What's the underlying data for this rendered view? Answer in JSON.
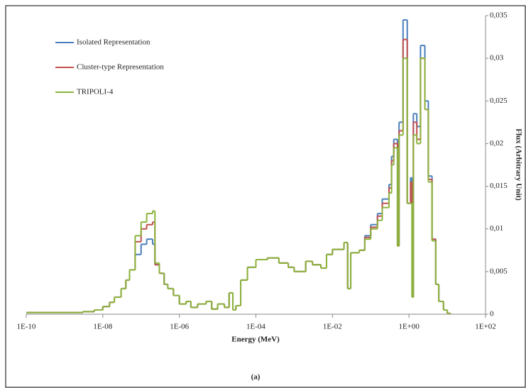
{
  "chart_data": {
    "type": "step",
    "x_label": "Energy (MeV)",
    "y_label": "Flux (Arbitrary Unit)",
    "caption": "(a)",
    "x_log": true,
    "grid": false,
    "legend": "top-left",
    "xlim": [
      1e-10,
      100
    ],
    "xticks": [
      {
        "value": 1e-10,
        "label": "1E-10"
      },
      {
        "value": 1e-08,
        "label": "1E-08"
      },
      {
        "value": 1e-06,
        "label": "1E-06"
      },
      {
        "value": 0.0001,
        "label": "1E-04"
      },
      {
        "value": 0.01,
        "label": "1E-02"
      },
      {
        "value": 1,
        "label": "1E+00"
      },
      {
        "value": 100,
        "label": "1E+02"
      }
    ],
    "ylim": [
      0,
      0.035
    ],
    "yticks": [
      0,
      {
        "value": 0.005,
        "label": "0,005"
      },
      {
        "value": 0.01,
        "label": "0,01"
      },
      {
        "value": 0.015,
        "label": "0,015"
      },
      {
        "value": 0.02,
        "label": "0,02"
      },
      {
        "value": 0.025,
        "label": "0,025"
      },
      {
        "value": 0.03,
        "label": "0,03"
      },
      {
        "value": 0.035,
        "label": "0,035"
      }
    ],
    "x": [
      1e-10,
      1e-09,
      3e-09,
      6e-09,
      1e-08,
      1.5e-08,
      2e-08,
      3e-08,
      4e-08,
      5e-08,
      7e-08,
      1e-07,
      1.4e-07,
      2e-07,
      2.3e-07,
      3e-07,
      4e-07,
      5e-07,
      7e-07,
      1e-06,
      1.5e-06,
      2e-06,
      3e-06,
      5e-06,
      7e-06,
      1e-05,
      1.5e-05,
      2e-05,
      2.5e-05,
      3e-05,
      4e-05,
      6e-05,
      0.0001,
      0.0002,
      0.0004,
      0.0007,
      0.001,
      0.002,
      0.003,
      0.005,
      0.007,
      0.01,
      0.02,
      0.025,
      0.03,
      0.05,
      0.07,
      0.1,
      0.15,
      0.2,
      0.3,
      0.35,
      0.4,
      0.5,
      0.55,
      0.7,
      0.9,
      1.1,
      1.2,
      1.3,
      1.6,
      2.0,
      2.6,
      3.2,
      4,
      5,
      6,
      8,
      10,
      12
    ],
    "series": [
      {
        "name": "Isolated Representation",
        "color": "#4a7ebb",
        "values": [
          0.0002,
          0.0002,
          0.0003,
          0.0005,
          0.0009,
          0.0014,
          0.002,
          0.003,
          0.004,
          0.0052,
          0.007,
          0.0082,
          0.0088,
          0.0082,
          0.0058,
          0.0048,
          0.0035,
          0.003,
          0.0022,
          0.0012,
          0.0015,
          0.0008,
          0.0012,
          0.0015,
          0.0006,
          0.0012,
          0.0008,
          0.0025,
          0.0005,
          0.001,
          0.004,
          0.0055,
          0.0064,
          0.0066,
          0.006,
          0.0055,
          0.005,
          0.0062,
          0.0058,
          0.0054,
          0.007,
          0.0076,
          0.0084,
          0.003,
          0.0072,
          0.0075,
          0.0092,
          0.0105,
          0.0118,
          0.0135,
          0.0152,
          0.0185,
          0.0205,
          0.008,
          0.0225,
          0.0345,
          0.013,
          0.016,
          0.002,
          0.0235,
          0.022,
          0.0315,
          0.025,
          0.0162,
          0.0088,
          0.0035,
          0.0015,
          0.0005,
          0.0001,
          0
        ]
      },
      {
        "name": "Cluster-type Representation",
        "color": "#c0504d",
        "values": [
          0.0002,
          0.0002,
          0.0003,
          0.0005,
          0.0009,
          0.0014,
          0.002,
          0.003,
          0.004,
          0.0052,
          0.0085,
          0.01,
          0.0105,
          0.0108,
          0.0058,
          0.0048,
          0.0035,
          0.003,
          0.0022,
          0.0012,
          0.0015,
          0.0008,
          0.0012,
          0.0015,
          0.0006,
          0.0012,
          0.0008,
          0.0025,
          0.0005,
          0.001,
          0.004,
          0.0055,
          0.0064,
          0.0066,
          0.006,
          0.0055,
          0.005,
          0.0062,
          0.0058,
          0.0054,
          0.007,
          0.0076,
          0.0084,
          0.003,
          0.0072,
          0.0075,
          0.009,
          0.0102,
          0.0115,
          0.013,
          0.0148,
          0.018,
          0.02,
          0.008,
          0.0215,
          0.0322,
          0.013,
          0.0155,
          0.002,
          0.0225,
          0.0205,
          0.03,
          0.024,
          0.0158,
          0.0088,
          0.0035,
          0.0015,
          0.0005,
          0.0001,
          0
        ]
      },
      {
        "name": "TRIPOLI-4",
        "color": "#8cb43c",
        "values": [
          0.0002,
          0.0002,
          0.0003,
          0.0005,
          0.0009,
          0.0014,
          0.002,
          0.003,
          0.004,
          0.0052,
          0.0092,
          0.0108,
          0.0118,
          0.0121,
          0.006,
          0.0048,
          0.0035,
          0.003,
          0.0022,
          0.0012,
          0.0015,
          0.0008,
          0.0012,
          0.0015,
          0.0006,
          0.0012,
          0.0008,
          0.0025,
          0.0005,
          0.001,
          0.004,
          0.0055,
          0.0064,
          0.0066,
          0.006,
          0.0055,
          0.005,
          0.0062,
          0.0058,
          0.0054,
          0.007,
          0.0076,
          0.0084,
          0.003,
          0.0072,
          0.0075,
          0.0088,
          0.01,
          0.011,
          0.0125,
          0.0142,
          0.0175,
          0.0195,
          0.008,
          0.021,
          0.03,
          0.013,
          0.013,
          0.002,
          0.021,
          0.02,
          0.03,
          0.024,
          0.0155,
          0.0086,
          0.0035,
          0.0015,
          0.0005,
          0.0001,
          0
        ]
      }
    ]
  }
}
